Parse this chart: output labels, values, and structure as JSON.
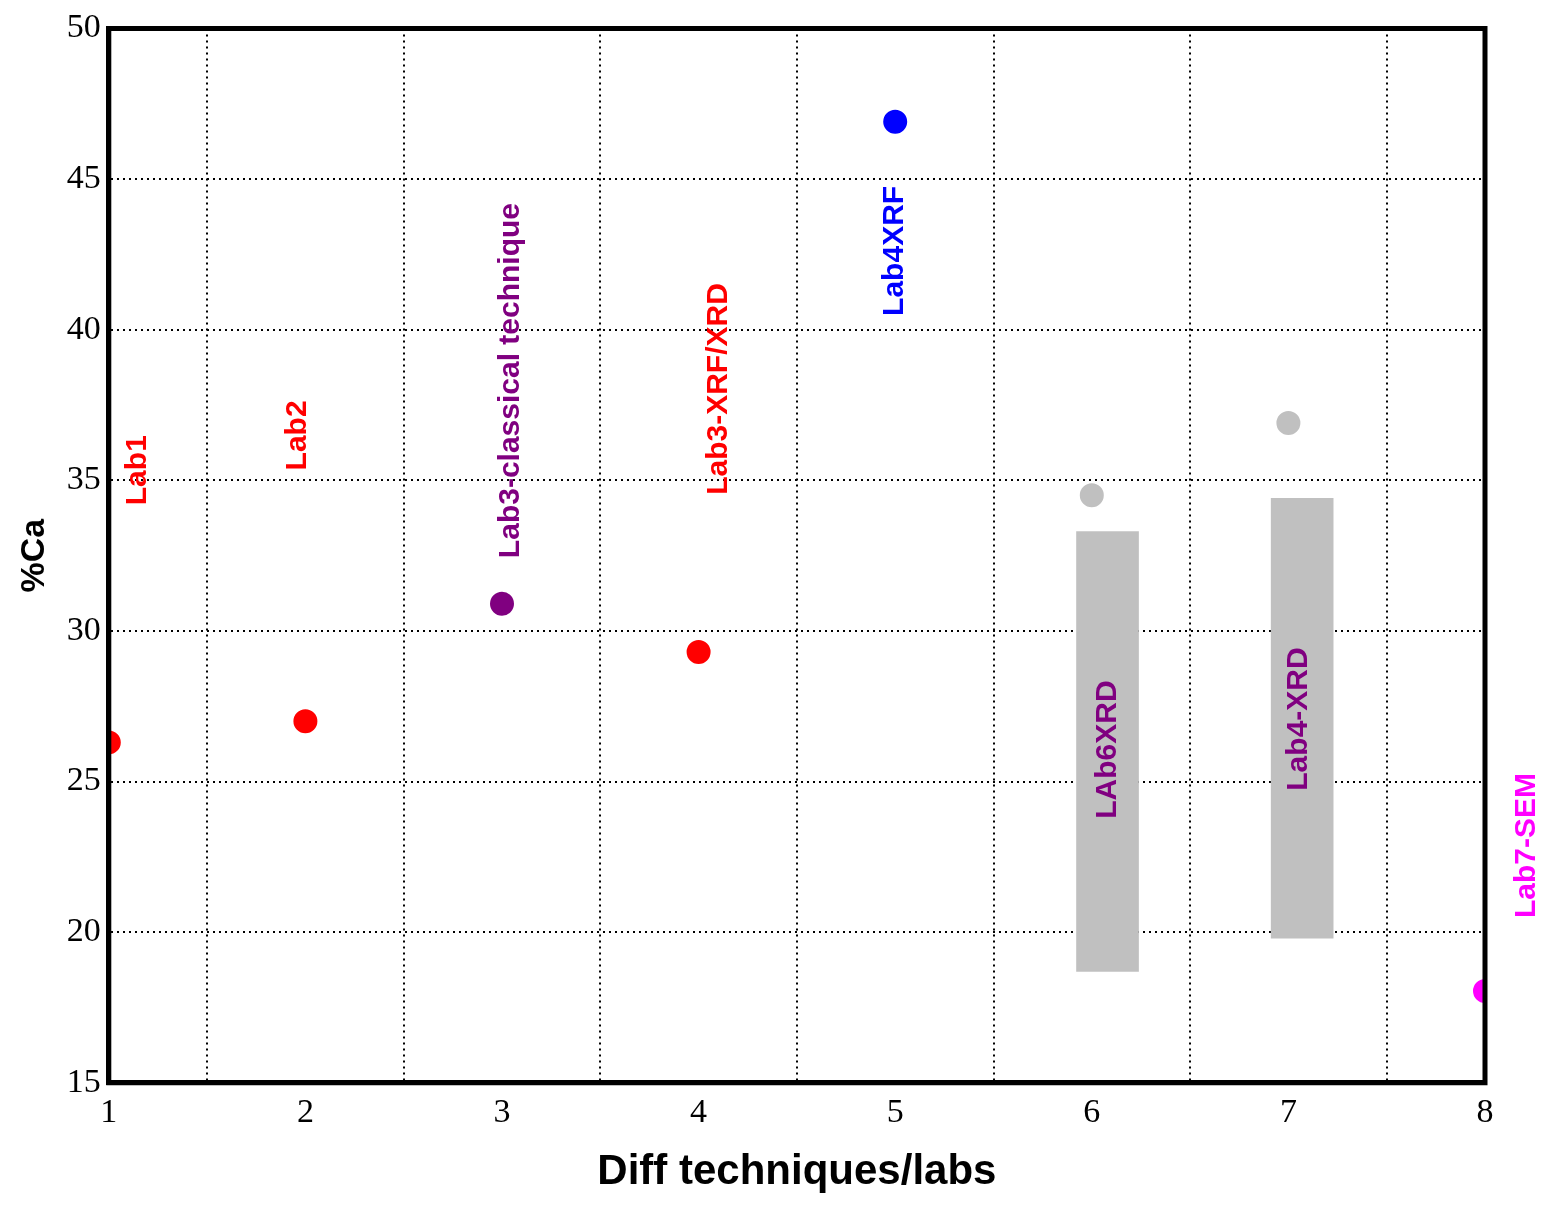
{
  "chart_data": {
    "type": "scatter",
    "xlabel": "Diff techniques/labs",
    "ylabel": "%Ca",
    "xlim": [
      1,
      8
    ],
    "xticks": [
      1,
      2,
      3,
      4,
      5,
      6,
      7,
      8
    ],
    "ylim": [
      15,
      50
    ],
    "yticks": [
      15,
      20,
      25,
      30,
      35,
      40,
      45,
      50
    ],
    "grid": true,
    "legend": false,
    "marker": "circle",
    "series": [
      {
        "type": "bar",
        "color": "#c0c0c0",
        "x": [
          6.08,
          7.07
        ],
        "base": [
          18.7,
          19.8
        ],
        "values": [
          14.6,
          14.6
        ]
      },
      {
        "x": [
          1,
          2,
          3,
          4,
          5,
          6,
          7,
          8
        ],
        "values": [
          26.3,
          27.0,
          30.9,
          29.3,
          46.9,
          34.5,
          36.9,
          18.05
        ],
        "colors": [
          "#ff0000",
          "#ff0000",
          "#800080",
          "#ff0000",
          "#0000ff",
          "#c0c0c0",
          "#c0c0c0",
          "#ff00ff"
        ]
      }
    ],
    "annotations": [
      "Lab1",
      "Lab2",
      "Lab3-classical technique",
      "Lab3-XRF/XRD",
      "Lab4XRF",
      "LAb6XRD",
      "Lab4-XRD",
      "Lab7-SEM"
    ]
  }
}
